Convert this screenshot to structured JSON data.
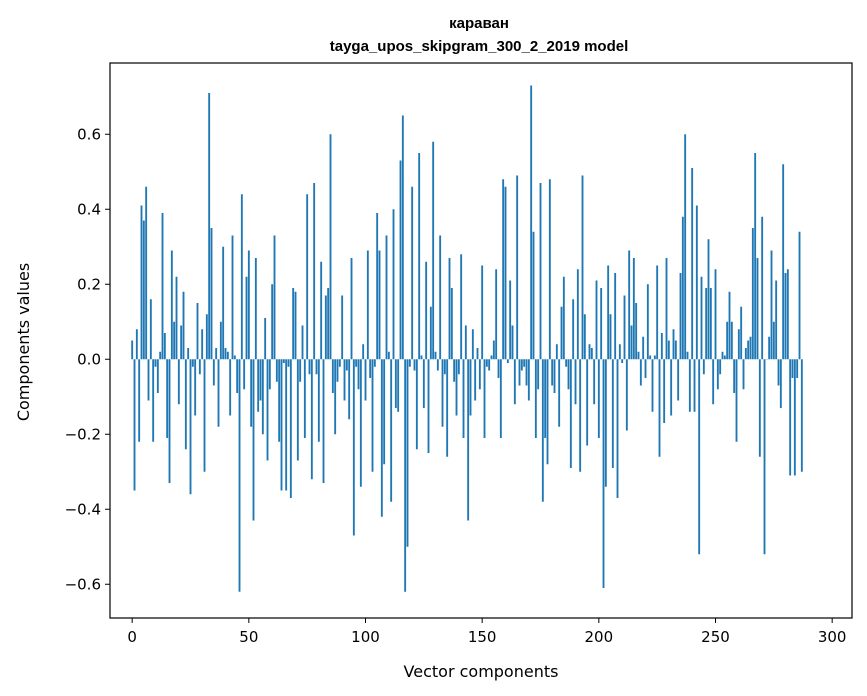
{
  "chart_data": {
    "type": "bar",
    "title": "караван",
    "subtitle": "tayga_upos_skipgram_300_2_2019 model",
    "xlabel": "Vector components",
    "ylabel": "Components values",
    "xlim": [
      -9.5,
      308.5
    ],
    "ylim": [
      -0.69,
      0.79
    ],
    "xticks": [
      0,
      50,
      100,
      150,
      200,
      250,
      300
    ],
    "yticks": [
      -0.6,
      -0.4,
      -0.2,
      0.0,
      0.2,
      0.4,
      0.6
    ],
    "ytick_labels": [
      "−0.6",
      "−0.4",
      "−0.2",
      "0.0",
      "0.2",
      "0.4",
      "0.6"
    ],
    "bar_color": "#1f77b4",
    "grid": false,
    "legend": "none",
    "values": [
      0.05,
      -0.35,
      0.08,
      -0.22,
      0.41,
      0.37,
      0.46,
      -0.11,
      0.16,
      -0.22,
      -0.02,
      -0.09,
      0.02,
      0.39,
      0.07,
      -0.21,
      -0.33,
      0.29,
      0.1,
      0.22,
      -0.12,
      0.09,
      0.18,
      -0.24,
      0.03,
      -0.36,
      -0.02,
      -0.15,
      0.15,
      -0.04,
      0.08,
      -0.3,
      0.12,
      0.71,
      0.35,
      -0.07,
      0.03,
      -0.18,
      0.1,
      0.3,
      0.03,
      0.02,
      -0.15,
      0.33,
      0.01,
      -0.09,
      -0.62,
      0.44,
      -0.08,
      0.22,
      0.29,
      -0.18,
      -0.43,
      0.27,
      -0.14,
      -0.11,
      -0.2,
      0.11,
      -0.27,
      -0.08,
      0.2,
      0.33,
      -0.06,
      -0.22,
      -0.35,
      -0.01,
      -0.35,
      -0.02,
      -0.37,
      0.19,
      0.18,
      -0.27,
      -0.06,
      0.09,
      -0.21,
      0.44,
      -0.04,
      -0.32,
      0.47,
      -0.04,
      -0.22,
      0.26,
      -0.33,
      0.17,
      0.19,
      0.6,
      -0.09,
      -0.2,
      -0.06,
      -0.02,
      0.17,
      -0.11,
      -0.03,
      -0.16,
      0.27,
      -0.47,
      -0.02,
      -0.08,
      -0.34,
      0.04,
      -0.11,
      0.29,
      -0.05,
      -0.3,
      -0.02,
      0.39,
      0.29,
      -0.42,
      -0.28,
      0.33,
      0.02,
      -0.38,
      0.4,
      -0.13,
      -0.14,
      0.53,
      0.65,
      -0.62,
      -0.5,
      -0.02,
      0.46,
      -0.03,
      -0.24,
      0.55,
      0.01,
      -0.13,
      0.26,
      -0.25,
      0.14,
      0.58,
      0.02,
      -0.03,
      0.33,
      -0.18,
      -0.04,
      -0.26,
      0.27,
      0.19,
      -0.06,
      -0.15,
      -0.04,
      0.28,
      -0.21,
      0.09,
      -0.43,
      -0.15,
      0.08,
      -0.11,
      0.03,
      -0.08,
      0.25,
      -0.21,
      -0.02,
      -0.03,
      0.01,
      0.05,
      0.24,
      -0.05,
      -0.21,
      0.48,
      0.46,
      -0.01,
      0.21,
      0.09,
      -0.12,
      0.49,
      -0.07,
      -0.03,
      -0.02,
      -0.07,
      -0.11,
      0.73,
      0.34,
      -0.21,
      -0.08,
      0.47,
      -0.38,
      -0.21,
      -0.28,
      0.48,
      -0.07,
      -0.09,
      0.04,
      -0.18,
      0.14,
      0.22,
      -0.02,
      -0.08,
      -0.29,
      0.16,
      -0.12,
      0.24,
      -0.3,
      0.49,
      0.12,
      -0.23,
      0.04,
      0.03,
      -0.12,
      0.21,
      -0.21,
      0.19,
      -0.61,
      -0.34,
      0.25,
      0.12,
      -0.29,
      0.23,
      -0.37,
      0.04,
      -0.01,
      0.17,
      -0.19,
      0.29,
      0.09,
      0.27,
      0.15,
      0.02,
      -0.07,
      0.06,
      -0.05,
      0.2,
      0.01,
      -0.14,
      0.01,
      0.25,
      -0.26,
      0.07,
      -0.17,
      0.27,
      0.05,
      -0.15,
      0.08,
      0.05,
      -0.11,
      0.23,
      0.38,
      0.6,
      0.02,
      -0.14,
      0.51,
      -0.14,
      0.41,
      -0.52,
      0.22,
      -0.04,
      0.19,
      0.32,
      0.19,
      -0.12,
      0.24,
      -0.08,
      -0.04,
      0.02,
      0.01,
      0.1,
      0.18,
      0.1,
      -0.09,
      -0.22,
      0.08,
      0.14,
      -0.08,
      0.03,
      0.05,
      0.06,
      0.35,
      0.55,
      0.27,
      -0.26,
      0.38,
      -0.52,
      0.0,
      0.06,
      0.29,
      0.1,
      0.21,
      -0.07,
      -0.13,
      0.52,
      0.23,
      0.24,
      -0.31,
      -0.05,
      -0.31,
      -0.05,
      0.34,
      -0.3
    ]
  }
}
